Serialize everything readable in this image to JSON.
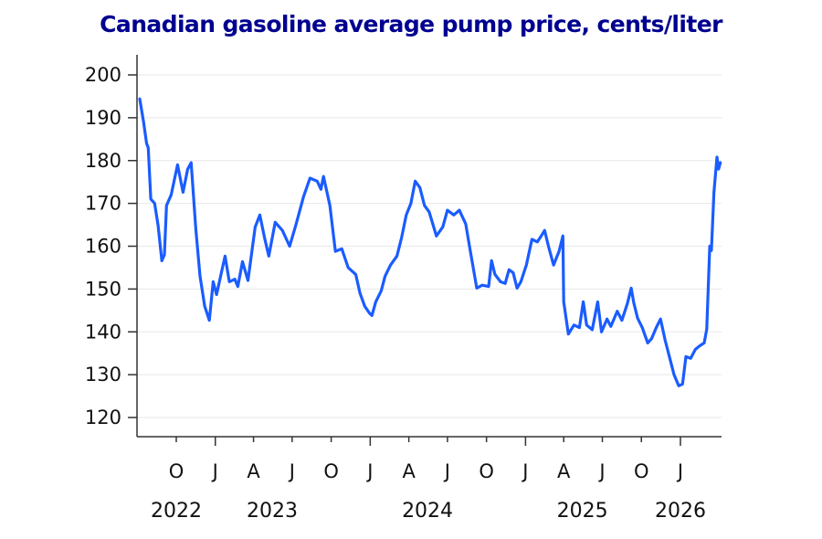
{
  "chart_data": {
    "type": "line",
    "title": "Canadian gasoline average pump price, cents/liter",
    "xlabel": "",
    "ylabel": "",
    "ylim": [
      115,
      204
    ],
    "xlim": [
      "2022-07-01",
      "2026-04-07"
    ],
    "grid": "horizontal",
    "legend": "none",
    "yticks": [
      120,
      130,
      140,
      150,
      160,
      170,
      180,
      190,
      200
    ],
    "xticks": [
      {
        "date": "2022-10-01",
        "label": "O"
      },
      {
        "date": "2023-01-01",
        "label": "J"
      },
      {
        "date": "2023-04-01",
        "label": "A"
      },
      {
        "date": "2023-07-01",
        "label": "J"
      },
      {
        "date": "2023-10-01",
        "label": "O"
      },
      {
        "date": "2024-01-01",
        "label": "J"
      },
      {
        "date": "2024-04-01",
        "label": "A"
      },
      {
        "date": "2024-07-01",
        "label": "J"
      },
      {
        "date": "2024-10-01",
        "label": "O"
      },
      {
        "date": "2025-01-01",
        "label": "J"
      },
      {
        "date": "2025-04-01",
        "label": "A"
      },
      {
        "date": "2025-07-01",
        "label": "J"
      },
      {
        "date": "2025-10-01",
        "label": "O"
      },
      {
        "date": "2026-01-01",
        "label": "J"
      }
    ],
    "year_labels": [
      {
        "date": "2022-10-01",
        "label": "2022"
      },
      {
        "date": "2023-05-15",
        "label": "2023"
      },
      {
        "date": "2024-05-15",
        "label": "2024"
      },
      {
        "date": "2025-05-15",
        "label": "2025"
      },
      {
        "date": "2026-01-01",
        "label": "2026"
      }
    ],
    "series": [
      {
        "name": "Average pump price",
        "color": "#1a5cff",
        "points": [
          [
            "2022-07-07",
            194.4
          ],
          [
            "2022-07-16",
            189
          ],
          [
            "2022-07-23",
            184
          ],
          [
            "2022-07-27",
            183
          ],
          [
            "2022-08-02",
            171
          ],
          [
            "2022-08-11",
            170
          ],
          [
            "2022-08-19",
            165
          ],
          [
            "2022-08-28",
            156.6
          ],
          [
            "2022-09-03",
            158
          ],
          [
            "2022-09-08",
            169.5
          ],
          [
            "2022-09-19",
            172
          ],
          [
            "2022-10-04",
            179
          ],
          [
            "2022-10-17",
            172.6
          ],
          [
            "2022-10-28",
            178
          ],
          [
            "2022-11-05",
            179.5
          ],
          [
            "2022-11-16",
            164
          ],
          [
            "2022-11-26",
            153
          ],
          [
            "2022-12-07",
            146
          ],
          [
            "2022-12-18",
            142.7
          ],
          [
            "2022-12-27",
            151.7
          ],
          [
            "2023-01-04",
            148.7
          ],
          [
            "2023-01-24",
            157.7
          ],
          [
            "2023-02-03",
            151.7
          ],
          [
            "2023-02-16",
            152.3
          ],
          [
            "2023-02-23",
            150.6
          ],
          [
            "2023-03-06",
            156.4
          ],
          [
            "2023-03-19",
            152
          ],
          [
            "2023-04-05",
            164.5
          ],
          [
            "2023-04-16",
            167.3
          ],
          [
            "2023-04-27",
            162
          ],
          [
            "2023-05-07",
            157.7
          ],
          [
            "2023-05-22",
            165.6
          ],
          [
            "2023-06-08",
            163.7
          ],
          [
            "2023-06-25",
            160
          ],
          [
            "2023-07-10",
            165
          ],
          [
            "2023-07-28",
            171.6
          ],
          [
            "2023-08-12",
            175.9
          ],
          [
            "2023-08-29",
            175.2
          ],
          [
            "2023-09-07",
            173.3
          ],
          [
            "2023-09-13",
            176.3
          ],
          [
            "2023-09-28",
            169.5
          ],
          [
            "2023-10-11",
            158.8
          ],
          [
            "2023-10-26",
            159.4
          ],
          [
            "2023-11-10",
            155
          ],
          [
            "2023-11-28",
            153.4
          ],
          [
            "2023-12-08",
            149
          ],
          [
            "2023-12-19",
            146
          ],
          [
            "2023-12-30",
            144.4
          ],
          [
            "2024-01-05",
            143.8
          ],
          [
            "2024-01-14",
            147
          ],
          [
            "2024-01-27",
            149.6
          ],
          [
            "2024-02-05",
            153
          ],
          [
            "2024-02-18",
            155.6
          ],
          [
            "2024-03-04",
            157.7
          ],
          [
            "2024-03-15",
            162
          ],
          [
            "2024-03-26",
            167.3
          ],
          [
            "2024-04-06",
            170
          ],
          [
            "2024-04-16",
            175.2
          ],
          [
            "2024-04-27",
            173.7
          ],
          [
            "2024-05-08",
            169.5
          ],
          [
            "2024-05-19",
            168
          ],
          [
            "2024-06-05",
            162.4
          ],
          [
            "2024-06-20",
            164.5
          ],
          [
            "2024-07-01",
            168.4
          ],
          [
            "2024-07-16",
            167.3
          ],
          [
            "2024-07-29",
            168.4
          ],
          [
            "2024-08-13",
            165.2
          ],
          [
            "2024-08-24",
            158.8
          ],
          [
            "2024-09-08",
            150.2
          ],
          [
            "2024-09-21",
            150.9
          ],
          [
            "2024-10-06",
            150.6
          ],
          [
            "2024-10-13",
            156.6
          ],
          [
            "2024-10-21",
            153.4
          ],
          [
            "2024-11-03",
            151.7
          ],
          [
            "2024-11-14",
            151.3
          ],
          [
            "2024-11-23",
            154.5
          ],
          [
            "2024-12-03",
            153.8
          ],
          [
            "2024-12-12",
            150.2
          ],
          [
            "2024-12-21",
            151.7
          ],
          [
            "2025-01-03",
            155.6
          ],
          [
            "2025-01-16",
            161.6
          ],
          [
            "2025-01-29",
            161
          ],
          [
            "2025-02-07",
            162.4
          ],
          [
            "2025-02-15",
            163.7
          ],
          [
            "2025-02-24",
            160
          ],
          [
            "2025-03-08",
            155.6
          ],
          [
            "2025-03-21",
            158.8
          ],
          [
            "2025-03-30",
            162.4
          ],
          [
            "2025-04-01",
            147
          ],
          [
            "2025-04-12",
            139.5
          ],
          [
            "2025-04-25",
            141.6
          ],
          [
            "2025-05-08",
            141
          ],
          [
            "2025-05-17",
            147
          ],
          [
            "2025-05-25",
            141.6
          ],
          [
            "2025-06-07",
            140.5
          ],
          [
            "2025-06-20",
            147
          ],
          [
            "2025-06-29",
            140
          ],
          [
            "2025-07-12",
            143
          ],
          [
            "2025-07-21",
            141.3
          ],
          [
            "2025-08-05",
            144.8
          ],
          [
            "2025-08-16",
            142.7
          ],
          [
            "2025-08-29",
            146.6
          ],
          [
            "2025-09-07",
            150.2
          ],
          [
            "2025-09-13",
            146.8
          ],
          [
            "2025-09-22",
            143.2
          ],
          [
            "2025-10-03",
            141
          ],
          [
            "2025-10-16",
            137.4
          ],
          [
            "2025-10-25",
            138.4
          ],
          [
            "2025-11-05",
            141
          ],
          [
            "2025-11-15",
            143
          ],
          [
            "2025-11-26",
            138
          ],
          [
            "2025-12-07",
            133.8
          ],
          [
            "2025-12-17",
            130
          ],
          [
            "2025-12-28",
            127.4
          ],
          [
            "2026-01-06",
            127.8
          ],
          [
            "2026-01-14",
            134.2
          ],
          [
            "2026-01-25",
            133.8
          ],
          [
            "2026-02-05",
            135.9
          ],
          [
            "2026-02-15",
            136.7
          ],
          [
            "2026-02-26",
            137.4
          ],
          [
            "2026-03-04",
            140.6
          ],
          [
            "2026-03-11",
            160
          ],
          [
            "2026-03-15",
            159
          ],
          [
            "2026-03-21",
            172.6
          ],
          [
            "2026-03-28",
            180.8
          ],
          [
            "2026-04-01",
            178
          ],
          [
            "2026-04-05",
            179.5
          ]
        ]
      }
    ]
  }
}
